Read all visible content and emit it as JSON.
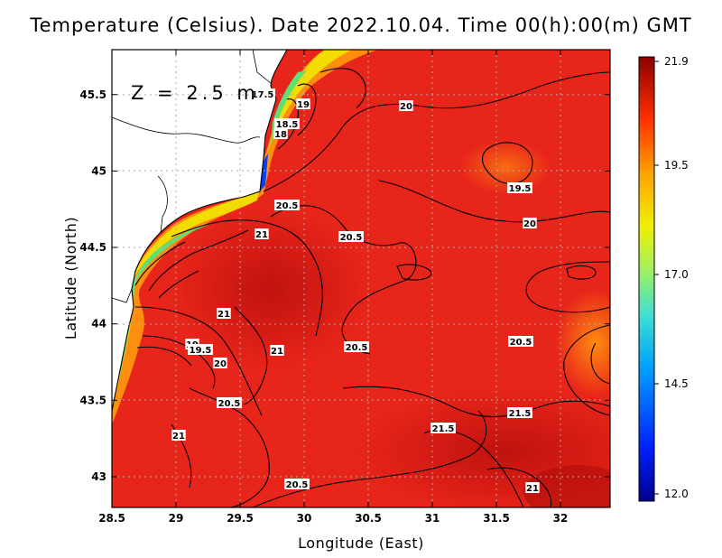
{
  "title": "Temperature (Celsius). Date 2022.10.04. Time 00(h):00(m) GMT",
  "depth_label": "Z = 2.5 m",
  "x_axis": {
    "label": "Longitude (East)",
    "ticks": [
      "28.5",
      "29",
      "29.5",
      "30",
      "30.5",
      "31",
      "31.5",
      "32"
    ]
  },
  "y_axis": {
    "label": "Latitude (North)",
    "ticks": [
      "43",
      "43.5",
      "44",
      "44.5",
      "45",
      "45.5"
    ]
  },
  "colorbar": {
    "max": "21.9",
    "min": "12.0",
    "labels": [
      "21.9",
      "19.5",
      "17.0",
      "14.5",
      "12.0"
    ]
  },
  "contour_labels": [
    "17.5",
    "19",
    "18.5",
    "18",
    "20",
    "19.5",
    "20",
    "20.5",
    "21",
    "20.5",
    "21",
    "19",
    "19.5",
    "20",
    "21",
    "20.5",
    "20.5",
    "20.5",
    "21",
    "21.5",
    "21.5",
    "21",
    "20.5"
  ],
  "colors": {
    "warm_max": "#8b0000",
    "sea_main": "#e8251a",
    "cold_min": "#00008b",
    "land": "#ffffff"
  }
}
